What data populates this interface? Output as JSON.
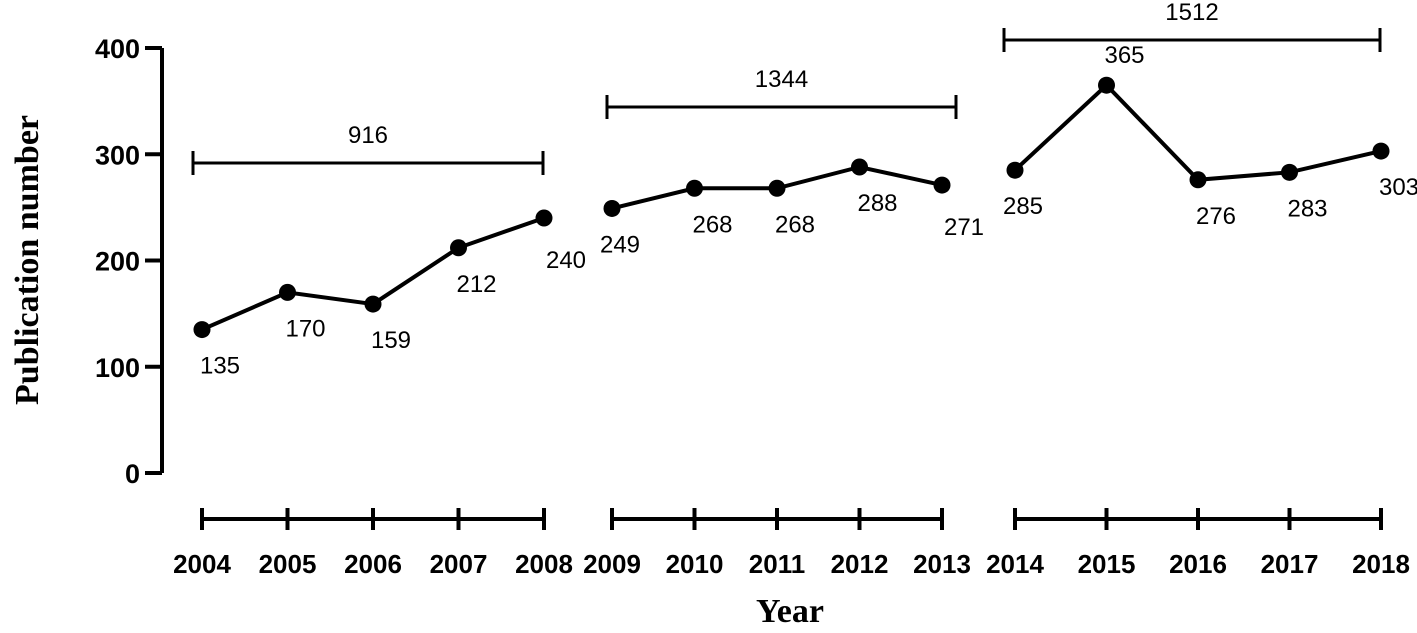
{
  "chart_data": {
    "type": "line",
    "xlabel": "Year",
    "ylabel": "Publication number",
    "ylim": [
      0,
      400
    ],
    "yticks": [
      0,
      100,
      200,
      300,
      400
    ],
    "grid": false,
    "segments": [
      {
        "years": [
          "2004",
          "2005",
          "2006",
          "2007",
          "2008"
        ],
        "values": [
          135,
          170,
          159,
          212,
          240
        ],
        "total": "916"
      },
      {
        "years": [
          "2009",
          "2010",
          "2011",
          "2012",
          "2013"
        ],
        "values": [
          249,
          268,
          268,
          288,
          271
        ],
        "total": "1344"
      },
      {
        "years": [
          "2014",
          "2015",
          "2016",
          "2017",
          "2018"
        ],
        "values": [
          285,
          365,
          276,
          283,
          303
        ],
        "total": "1512"
      }
    ],
    "colors": {
      "line": "#000000",
      "marker": "#000000"
    }
  }
}
